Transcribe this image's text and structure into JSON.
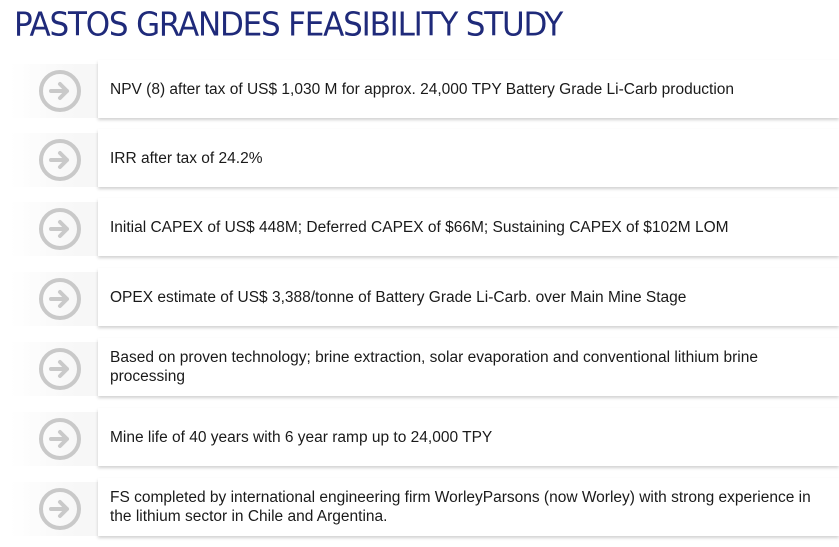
{
  "title": "PASTOS GRANDES FEASIBILITY STUDY",
  "items": [
    {
      "text": "NPV (8) after tax of US$ 1,030 M for approx. 24,000 TPY Battery Grade Li-Carb production",
      "icon": "arrow-right-circle-icon"
    },
    {
      "text": "IRR after tax of 24.2%",
      "icon": "arrow-right-circle-icon"
    },
    {
      "text": "Initial CAPEX of US$ 448M; Deferred CAPEX of $66M; Sustaining CAPEX of $102M LOM",
      "icon": "arrow-right-circle-icon"
    },
    {
      "text": "OPEX estimate of US$ 3,388/tonne of Battery Grade Li-Carb. over Main Mine Stage",
      "icon": "arrow-right-circle-icon"
    },
    {
      "text": "Based on proven technology; brine extraction, solar evaporation and conventional lithium brine processing",
      "icon": "arrow-right-circle-icon"
    },
    {
      "text": "Mine life of 40 years with 6 year ramp up to 24,000 TPY",
      "icon": "arrow-right-circle-icon"
    },
    {
      "text": "FS completed by international engineering firm WorleyParsons (now Worley) with strong experience in the lithium sector in Chile and Argentina.",
      "icon": "arrow-right-circle-icon"
    }
  ],
  "colors": {
    "title": "#1f2a7a",
    "icon": "#c9c9c9",
    "text": "#1a1a1a"
  }
}
